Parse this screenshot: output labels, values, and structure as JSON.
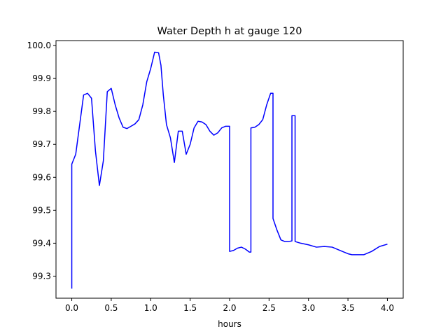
{
  "chart_data": {
    "type": "line",
    "title": "Water Depth h at gauge 120",
    "xlabel": "hours",
    "ylabel": "",
    "xlim": [
      -0.2,
      4.2
    ],
    "ylim": [
      99.233,
      100.015
    ],
    "x_ticks": [
      0.0,
      0.5,
      1.0,
      1.5,
      2.0,
      2.5,
      3.0,
      3.5,
      4.0
    ],
    "x_tick_labels": [
      "0.0",
      "0.5",
      "1.0",
      "1.5",
      "2.0",
      "2.5",
      "3.0",
      "3.5",
      "4.0"
    ],
    "y_ticks": [
      99.3,
      99.4,
      99.5,
      99.6,
      99.7,
      99.8,
      99.9,
      100.0
    ],
    "y_tick_labels": [
      "99.3",
      "99.4",
      "99.5",
      "99.6",
      "99.7",
      "99.8",
      "99.9",
      "100.0"
    ],
    "grid": false,
    "series": [
      {
        "color": "#0000ff",
        "x": [
          0.0,
          0.0,
          0.05,
          0.1,
          0.15,
          0.2,
          0.25,
          0.3,
          0.35,
          0.4,
          0.45,
          0.5,
          0.55,
          0.6,
          0.65,
          0.7,
          0.75,
          0.8,
          0.85,
          0.9,
          0.95,
          1.0,
          1.05,
          1.1,
          1.13,
          1.16,
          1.2,
          1.25,
          1.3,
          1.35,
          1.4,
          1.45,
          1.5,
          1.55,
          1.6,
          1.65,
          1.7,
          1.75,
          1.8,
          1.85,
          1.9,
          1.95,
          2.0,
          2.0,
          2.05,
          2.1,
          2.15,
          2.2,
          2.25,
          2.27,
          2.27,
          2.32,
          2.37,
          2.42,
          2.47,
          2.52,
          2.55,
          2.55,
          2.6,
          2.65,
          2.7,
          2.75,
          2.79,
          2.79,
          2.83,
          2.83,
          2.9,
          3.0,
          3.1,
          3.2,
          3.3,
          3.4,
          3.5,
          3.55,
          3.6,
          3.7,
          3.8,
          3.9,
          4.0
        ],
        "y": [
          99.262,
          99.64,
          99.67,
          99.76,
          99.85,
          99.855,
          99.84,
          99.68,
          99.575,
          99.65,
          99.86,
          99.87,
          99.82,
          99.78,
          99.752,
          99.748,
          99.755,
          99.762,
          99.775,
          99.82,
          99.89,
          99.93,
          99.98,
          99.978,
          99.94,
          99.85,
          99.76,
          99.72,
          99.645,
          99.74,
          99.74,
          99.67,
          99.7,
          99.75,
          99.77,
          99.768,
          99.76,
          99.74,
          99.728,
          99.735,
          99.75,
          99.755,
          99.755,
          99.375,
          99.378,
          99.385,
          99.388,
          99.382,
          99.373,
          99.373,
          99.75,
          99.752,
          99.76,
          99.775,
          99.82,
          99.855,
          99.855,
          99.475,
          99.44,
          99.41,
          99.405,
          99.405,
          99.407,
          99.787,
          99.787,
          99.405,
          99.4,
          99.395,
          99.388,
          99.39,
          99.388,
          99.378,
          99.368,
          99.365,
          99.365,
          99.365,
          99.375,
          99.39,
          99.397
        ]
      }
    ]
  }
}
